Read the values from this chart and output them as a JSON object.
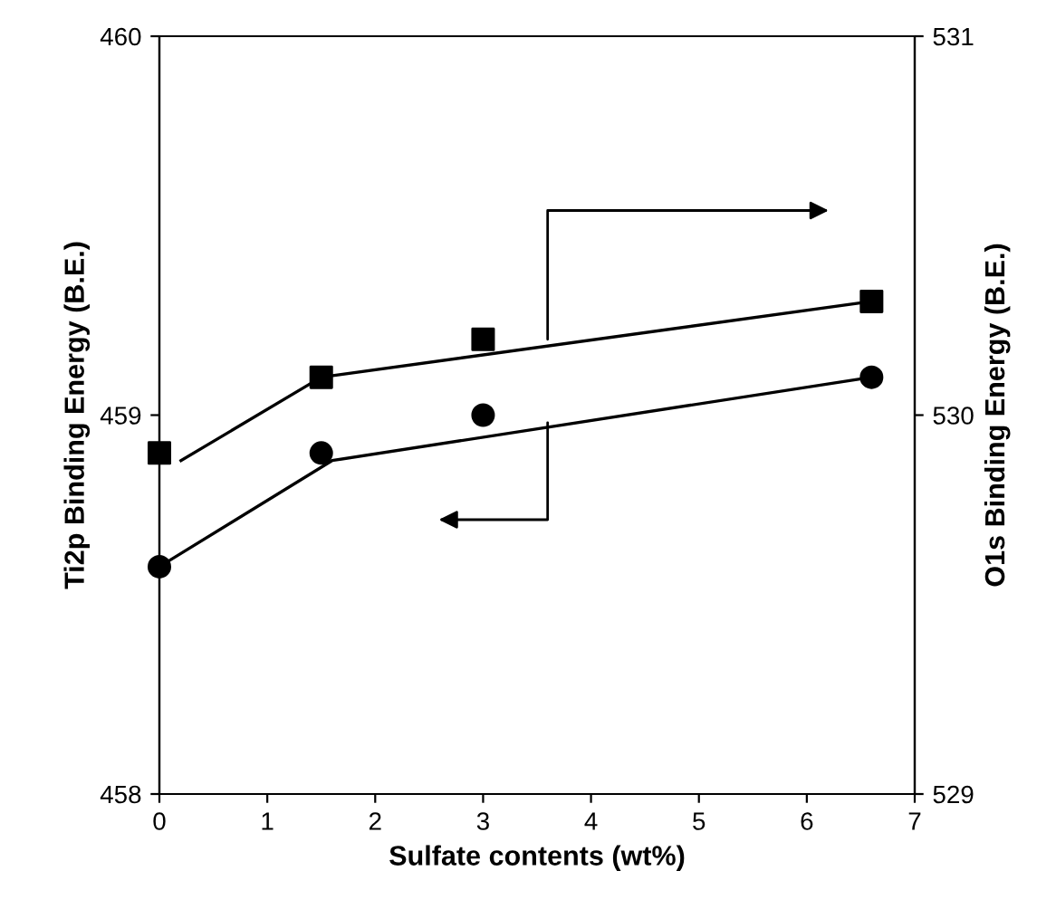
{
  "chart_data": {
    "type": "scatter",
    "xlabel": "Sulfate contents (wt%)",
    "ylabel": "Ti2p Binding Energy (B.E.)",
    "y2label": "O1s Binding Energy (B.E.)",
    "xlim": [
      0,
      7
    ],
    "xticks": [
      0,
      1,
      2,
      3,
      4,
      5,
      6,
      7
    ],
    "ylim": [
      458,
      460
    ],
    "yticks": [
      458,
      459,
      460
    ],
    "y2lim": [
      529,
      531
    ],
    "y2ticks": [
      529,
      530,
      531
    ],
    "grid": false,
    "series": [
      {
        "marker": "circle",
        "color": "#000000",
        "x": [
          0,
          1.5,
          3,
          6.6
        ],
        "values": [
          458.6,
          458.9,
          459.0,
          459.1
        ]
      },
      {
        "marker": "square",
        "color": "#000000",
        "axis": "y2",
        "x": [
          0,
          1.5,
          3,
          6.6
        ],
        "values": [
          529.9,
          530.1,
          530.2,
          530.3
        ]
      },
      {
        "type": "line",
        "marker": "none",
        "color": "#000000",
        "x": [
          0,
          1.6,
          6.6
        ],
        "values": [
          458.6,
          458.88,
          459.1
        ]
      },
      {
        "type": "line",
        "marker": "none",
        "color": "#000000",
        "axis": "y2",
        "x": [
          0.2,
          1.5,
          6.6
        ],
        "values": [
          529.88,
          530.1,
          530.3
        ]
      }
    ]
  }
}
